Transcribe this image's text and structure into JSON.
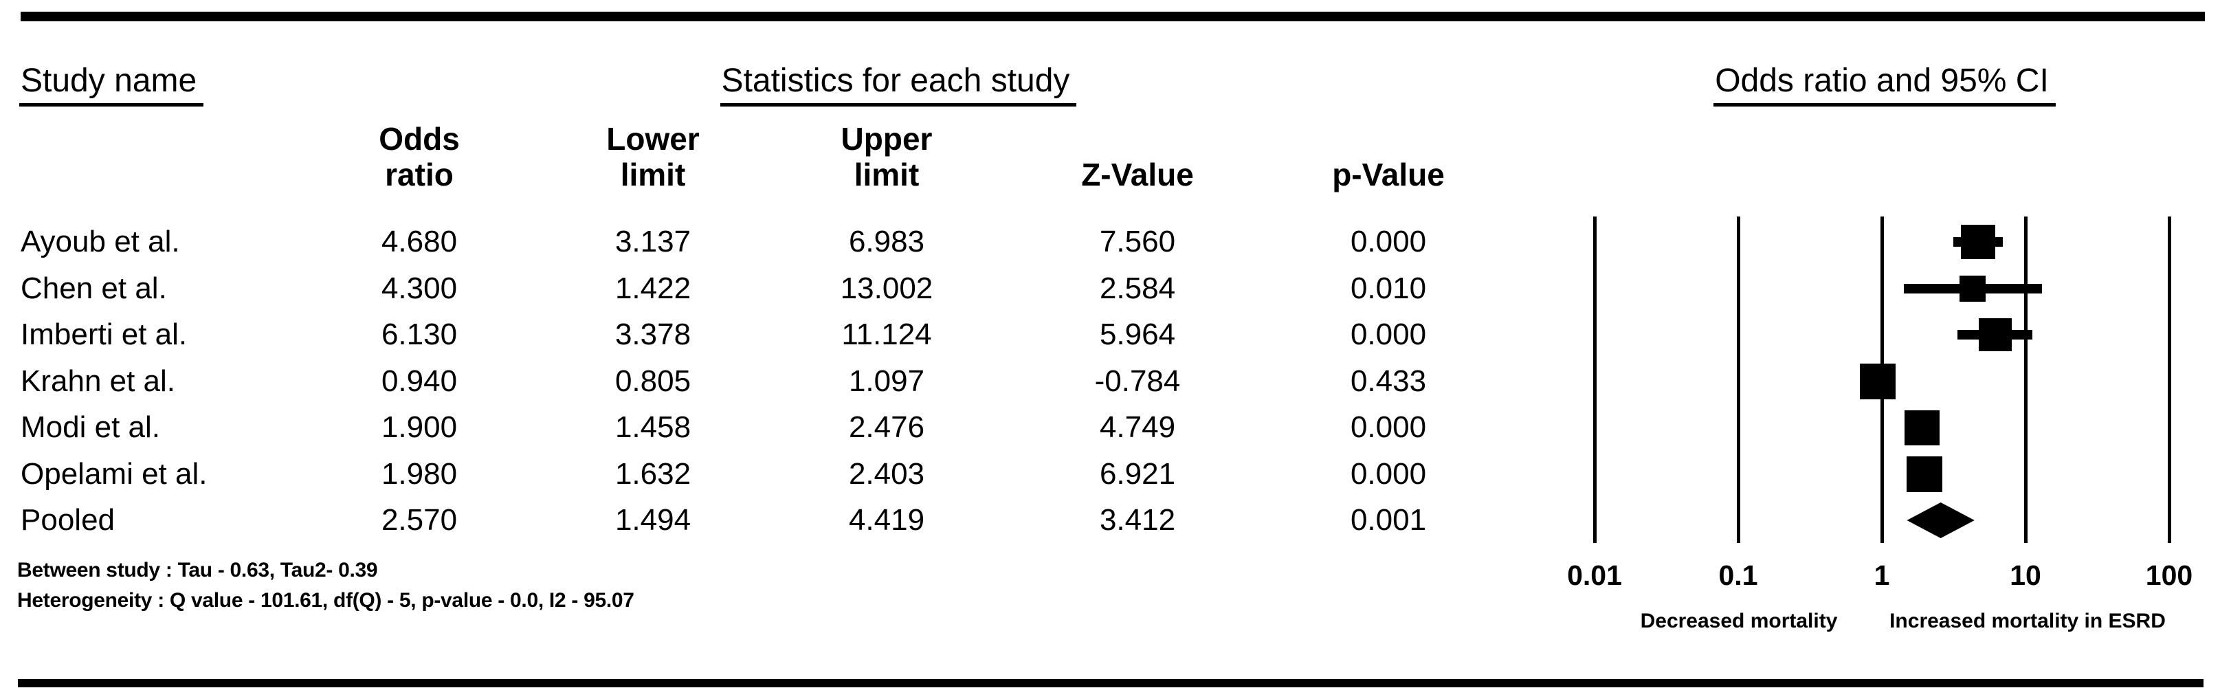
{
  "header": {
    "study_name": "Study name",
    "statistics": "Statistics for each study",
    "odds_ratio_ci": "Odds ratio and 95% CI"
  },
  "columns": [
    {
      "line1": "Odds",
      "line2": "ratio"
    },
    {
      "line1": "Lower",
      "line2": "limit"
    },
    {
      "line1": "Upper",
      "line2": "limit"
    },
    {
      "line1": "",
      "line2": "Z-Value"
    },
    {
      "line1": "",
      "line2": "p-Value"
    }
  ],
  "table": {
    "rows": [
      {
        "study": "Ayoub et al.",
        "odds_ratio": "4.680",
        "lower": "3.137",
        "upper": "6.983",
        "z": "7.560",
        "p": "0.000"
      },
      {
        "study": "Chen et al.",
        "odds_ratio": "4.300",
        "lower": "1.422",
        "upper": "13.002",
        "z": "2.584",
        "p": "0.010"
      },
      {
        "study": "Imberti et al.",
        "odds_ratio": "6.130",
        "lower": "3.378",
        "upper": "11.124",
        "z": "5.964",
        "p": "0.000"
      },
      {
        "study": "Krahn et al.",
        "odds_ratio": "0.940",
        "lower": "0.805",
        "upper": "1.097",
        "z": "-0.784",
        "p": "0.433"
      },
      {
        "study": "Modi et al.",
        "odds_ratio": "1.900",
        "lower": "1.458",
        "upper": "2.476",
        "z": "4.749",
        "p": "0.000"
      },
      {
        "study": "Opelami et al.",
        "odds_ratio": "1.980",
        "lower": "1.632",
        "upper": "2.403",
        "z": "6.921",
        "p": "0.000"
      },
      {
        "study": "Pooled",
        "odds_ratio": "2.570",
        "lower": "1.494",
        "upper": "4.419",
        "z": "3.412",
        "p": "0.001"
      }
    ]
  },
  "notes": [
    "Between study : Tau - 0.63, Tau2- 0.39",
    "Heterogeneity : Q value - 101.61, df(Q) - 5, p-value - 0.0, I2 - 95.07"
  ],
  "chart_data": {
    "type": "forest",
    "x_scale": "log10",
    "x_range": [
      0.01,
      100
    ],
    "x_ticks": [
      0.01,
      0.1,
      1,
      10,
      100
    ],
    "x_tick_labels": [
      "0.01",
      "0.1",
      "1",
      "10",
      "100"
    ],
    "axis_label_left": "Decreased mortality",
    "axis_label_right": "Increased mortality in ESRD",
    "studies": [
      {
        "name": "Ayoub et al.",
        "or": 4.68,
        "lower": 3.137,
        "upper": 6.983,
        "marker": "square",
        "marker_size_px": 50
      },
      {
        "name": "Chen et al.",
        "or": 4.3,
        "lower": 1.422,
        "upper": 13.002,
        "marker": "square",
        "marker_size_px": 38
      },
      {
        "name": "Imberti et al.",
        "or": 6.13,
        "lower": 3.378,
        "upper": 11.124,
        "marker": "square",
        "marker_size_px": 48
      },
      {
        "name": "Krahn et al.",
        "or": 0.94,
        "lower": 0.805,
        "upper": 1.097,
        "marker": "square",
        "marker_size_px": 52
      },
      {
        "name": "Modi et al.",
        "or": 1.9,
        "lower": 1.458,
        "upper": 2.476,
        "marker": "square",
        "marker_size_px": 51
      },
      {
        "name": "Opelami et al.",
        "or": 1.98,
        "lower": 1.632,
        "upper": 2.403,
        "marker": "square",
        "marker_size_px": 52
      },
      {
        "name": "Pooled",
        "or": 2.57,
        "lower": 1.494,
        "upper": 4.419,
        "marker": "diamond",
        "marker_size_px": 52
      }
    ],
    "colors": {
      "foreground": "#000000",
      "background": "#ffffff"
    }
  }
}
